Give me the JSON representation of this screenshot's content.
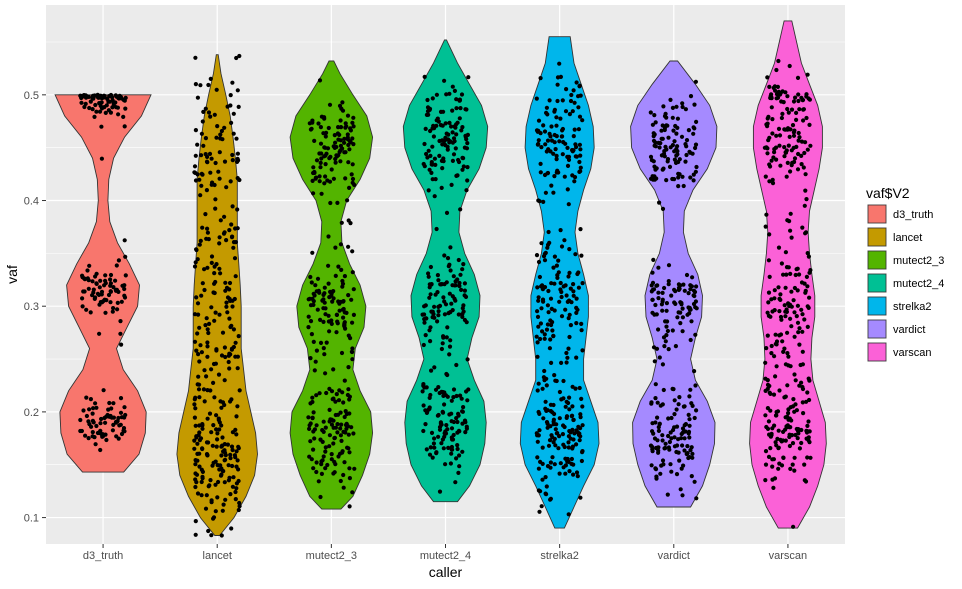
{
  "chart_data": {
    "type": "violin",
    "xlabel": "caller",
    "ylabel": "vaf",
    "ylim": [
      0.075,
      0.585
    ],
    "y_ticks": [
      "0.1",
      "0.2",
      "0.3",
      "0.4",
      "0.5"
    ],
    "grid": true,
    "legend": {
      "title": "vaf$V2",
      "position": "right"
    },
    "categories": [
      "d3_truth",
      "lancet",
      "mutect2_3",
      "mutect2_4",
      "strelka2",
      "vardict",
      "varscan"
    ],
    "colors": [
      "#F8766D",
      "#C49A00",
      "#53B400",
      "#00C094",
      "#00B6EB",
      "#A58AFF",
      "#FB61D7"
    ],
    "series": [
      {
        "name": "d3_truth",
        "min": 0.143,
        "max": 0.5,
        "density": [
          [
            0.143,
            0.43
          ],
          [
            0.16,
            0.75
          ],
          [
            0.18,
            0.88
          ],
          [
            0.2,
            0.9
          ],
          [
            0.22,
            0.72
          ],
          [
            0.24,
            0.42
          ],
          [
            0.26,
            0.28
          ],
          [
            0.28,
            0.5
          ],
          [
            0.3,
            0.72
          ],
          [
            0.32,
            0.76
          ],
          [
            0.34,
            0.55
          ],
          [
            0.36,
            0.3
          ],
          [
            0.38,
            0.14
          ],
          [
            0.4,
            0.1
          ],
          [
            0.42,
            0.12
          ],
          [
            0.44,
            0.22
          ],
          [
            0.46,
            0.45
          ],
          [
            0.48,
            0.8
          ],
          [
            0.5,
            1.0
          ]
        ],
        "clusters": [
          [
            0.5,
            0.004,
            40
          ],
          [
            0.49,
            0.01,
            40
          ],
          [
            0.315,
            0.012,
            70
          ],
          [
            0.19,
            0.012,
            70
          ],
          [
            0.26,
            0.06,
            8
          ]
        ]
      },
      {
        "name": "lancet",
        "min": 0.083,
        "max": 0.538,
        "density": [
          [
            0.083,
            0.05
          ],
          [
            0.1,
            0.35
          ],
          [
            0.12,
            0.6
          ],
          [
            0.14,
            0.78
          ],
          [
            0.16,
            0.84
          ],
          [
            0.18,
            0.8
          ],
          [
            0.2,
            0.7
          ],
          [
            0.22,
            0.6
          ],
          [
            0.24,
            0.55
          ],
          [
            0.26,
            0.5
          ],
          [
            0.28,
            0.5
          ],
          [
            0.3,
            0.5
          ],
          [
            0.32,
            0.48
          ],
          [
            0.34,
            0.45
          ],
          [
            0.36,
            0.42
          ],
          [
            0.38,
            0.42
          ],
          [
            0.4,
            0.42
          ],
          [
            0.42,
            0.42
          ],
          [
            0.44,
            0.38
          ],
          [
            0.46,
            0.33
          ],
          [
            0.48,
            0.27
          ],
          [
            0.5,
            0.18
          ],
          [
            0.52,
            0.08
          ],
          [
            0.538,
            0.02
          ]
        ],
        "clusters": [
          [
            0.16,
            0.03,
            120
          ],
          [
            0.3,
            0.09,
            180
          ],
          [
            0.45,
            0.04,
            50
          ]
        ]
      },
      {
        "name": "mutect2_3",
        "min": 0.108,
        "max": 0.532,
        "density": [
          [
            0.108,
            0.2
          ],
          [
            0.12,
            0.45
          ],
          [
            0.14,
            0.65
          ],
          [
            0.16,
            0.8
          ],
          [
            0.18,
            0.86
          ],
          [
            0.2,
            0.82
          ],
          [
            0.22,
            0.6
          ],
          [
            0.24,
            0.45
          ],
          [
            0.26,
            0.5
          ],
          [
            0.28,
            0.68
          ],
          [
            0.3,
            0.72
          ],
          [
            0.32,
            0.6
          ],
          [
            0.34,
            0.38
          ],
          [
            0.36,
            0.22
          ],
          [
            0.38,
            0.2
          ],
          [
            0.4,
            0.32
          ],
          [
            0.42,
            0.6
          ],
          [
            0.44,
            0.8
          ],
          [
            0.46,
            0.86
          ],
          [
            0.48,
            0.74
          ],
          [
            0.5,
            0.45
          ],
          [
            0.52,
            0.18
          ],
          [
            0.532,
            0.05
          ]
        ],
        "clusters": [
          [
            0.18,
            0.025,
            110
          ],
          [
            0.3,
            0.025,
            90
          ],
          [
            0.45,
            0.025,
            110
          ],
          [
            0.25,
            0.07,
            20
          ]
        ]
      },
      {
        "name": "mutect2_4",
        "min": 0.115,
        "max": 0.552,
        "density": [
          [
            0.115,
            0.25
          ],
          [
            0.13,
            0.5
          ],
          [
            0.15,
            0.72
          ],
          [
            0.17,
            0.82
          ],
          [
            0.19,
            0.85
          ],
          [
            0.21,
            0.8
          ],
          [
            0.23,
            0.6
          ],
          [
            0.25,
            0.45
          ],
          [
            0.27,
            0.55
          ],
          [
            0.29,
            0.7
          ],
          [
            0.31,
            0.72
          ],
          [
            0.33,
            0.6
          ],
          [
            0.35,
            0.4
          ],
          [
            0.37,
            0.28
          ],
          [
            0.39,
            0.3
          ],
          [
            0.41,
            0.45
          ],
          [
            0.43,
            0.7
          ],
          [
            0.45,
            0.85
          ],
          [
            0.47,
            0.88
          ],
          [
            0.49,
            0.75
          ],
          [
            0.51,
            0.5
          ],
          [
            0.53,
            0.25
          ],
          [
            0.552,
            0.02
          ]
        ],
        "clusters": [
          [
            0.19,
            0.025,
            110
          ],
          [
            0.3,
            0.025,
            90
          ],
          [
            0.46,
            0.025,
            110
          ],
          [
            0.37,
            0.05,
            15
          ]
        ]
      },
      {
        "name": "strelka2",
        "min": 0.09,
        "max": 0.555,
        "density": [
          [
            0.09,
            0.1
          ],
          [
            0.11,
            0.3
          ],
          [
            0.13,
            0.5
          ],
          [
            0.15,
            0.72
          ],
          [
            0.17,
            0.82
          ],
          [
            0.19,
            0.8
          ],
          [
            0.21,
            0.65
          ],
          [
            0.23,
            0.5
          ],
          [
            0.25,
            0.5
          ],
          [
            0.27,
            0.55
          ],
          [
            0.29,
            0.6
          ],
          [
            0.31,
            0.6
          ],
          [
            0.33,
            0.5
          ],
          [
            0.35,
            0.38
          ],
          [
            0.37,
            0.32
          ],
          [
            0.39,
            0.38
          ],
          [
            0.41,
            0.5
          ],
          [
            0.43,
            0.65
          ],
          [
            0.45,
            0.72
          ],
          [
            0.47,
            0.7
          ],
          [
            0.49,
            0.6
          ],
          [
            0.51,
            0.45
          ],
          [
            0.53,
            0.3
          ],
          [
            0.555,
            0.22
          ]
        ],
        "clusters": [
          [
            0.17,
            0.028,
            120
          ],
          [
            0.3,
            0.035,
            100
          ],
          [
            0.46,
            0.03,
            110
          ],
          [
            0.24,
            0.08,
            30
          ]
        ]
      },
      {
        "name": "vardict",
        "min": 0.11,
        "max": 0.532,
        "density": [
          [
            0.11,
            0.35
          ],
          [
            0.13,
            0.6
          ],
          [
            0.15,
            0.75
          ],
          [
            0.17,
            0.85
          ],
          [
            0.19,
            0.86
          ],
          [
            0.21,
            0.7
          ],
          [
            0.23,
            0.45
          ],
          [
            0.25,
            0.35
          ],
          [
            0.27,
            0.45
          ],
          [
            0.29,
            0.58
          ],
          [
            0.31,
            0.6
          ],
          [
            0.33,
            0.5
          ],
          [
            0.35,
            0.3
          ],
          [
            0.37,
            0.2
          ],
          [
            0.39,
            0.22
          ],
          [
            0.41,
            0.4
          ],
          [
            0.43,
            0.7
          ],
          [
            0.45,
            0.88
          ],
          [
            0.47,
            0.9
          ],
          [
            0.49,
            0.75
          ],
          [
            0.51,
            0.45
          ],
          [
            0.532,
            0.08
          ]
        ],
        "clusters": [
          [
            0.18,
            0.025,
            110
          ],
          [
            0.3,
            0.02,
            80
          ],
          [
            0.45,
            0.025,
            110
          ],
          [
            0.25,
            0.06,
            15
          ]
        ]
      },
      {
        "name": "varscan",
        "min": 0.09,
        "max": 0.57,
        "density": [
          [
            0.09,
            0.2
          ],
          [
            0.11,
            0.45
          ],
          [
            0.13,
            0.62
          ],
          [
            0.15,
            0.75
          ],
          [
            0.17,
            0.8
          ],
          [
            0.19,
            0.78
          ],
          [
            0.21,
            0.65
          ],
          [
            0.23,
            0.52
          ],
          [
            0.25,
            0.48
          ],
          [
            0.27,
            0.5
          ],
          [
            0.29,
            0.56
          ],
          [
            0.31,
            0.56
          ],
          [
            0.33,
            0.5
          ],
          [
            0.35,
            0.45
          ],
          [
            0.37,
            0.42
          ],
          [
            0.39,
            0.45
          ],
          [
            0.41,
            0.55
          ],
          [
            0.43,
            0.65
          ],
          [
            0.45,
            0.72
          ],
          [
            0.47,
            0.72
          ],
          [
            0.49,
            0.62
          ],
          [
            0.51,
            0.45
          ],
          [
            0.53,
            0.28
          ],
          [
            0.55,
            0.18
          ],
          [
            0.57,
            0.08
          ]
        ],
        "clusters": [
          [
            0.18,
            0.03,
            120
          ],
          [
            0.3,
            0.04,
            110
          ],
          [
            0.46,
            0.03,
            110
          ],
          [
            0.5,
            0.003,
            20
          ]
        ]
      }
    ]
  }
}
